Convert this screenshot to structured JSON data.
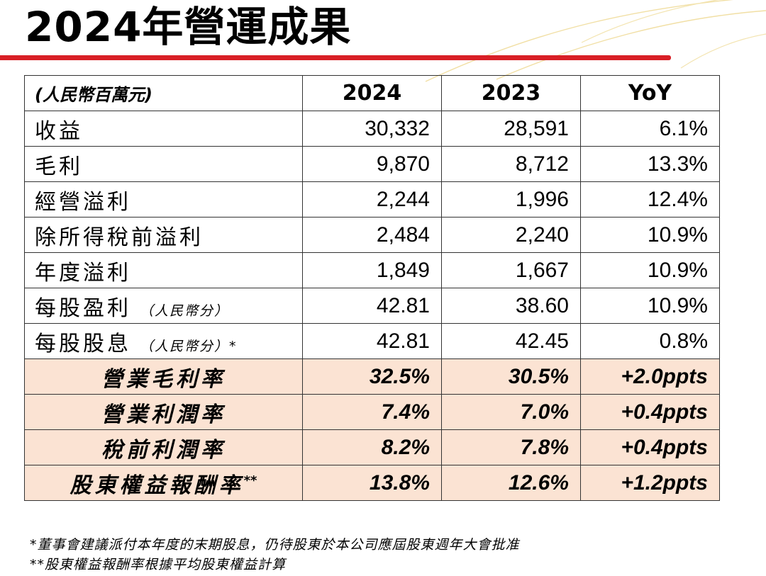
{
  "title": "2024年營運成果",
  "table": {
    "header": {
      "unit": "(人民幣百萬元)",
      "col_2024": "2024",
      "col_2023": "2023",
      "col_yoy": "YoY"
    },
    "rows": [
      {
        "label": "收益",
        "sub": "",
        "v2024": "30,332",
        "v2023": "28,591",
        "yoy": "6.1%"
      },
      {
        "label": "毛利",
        "sub": "",
        "v2024": "9,870",
        "v2023": "8,712",
        "yoy": "13.3%"
      },
      {
        "label": "經營溢利",
        "sub": "",
        "v2024": "2,244",
        "v2023": "1,996",
        "yoy": "12.4%"
      },
      {
        "label": "除所得稅前溢利",
        "sub": "",
        "v2024": "2,484",
        "v2023": "2,240",
        "yoy": "10.9%"
      },
      {
        "label": "年度溢利",
        "sub": "",
        "v2024": "1,849",
        "v2023": "1,667",
        "yoy": "10.9%"
      },
      {
        "label": "每股盈利",
        "sub": "（人民幣分）",
        "v2024": "42.81",
        "v2023": "38.60",
        "yoy": "10.9%"
      },
      {
        "label": "每股股息",
        "sub": "（人民幣分）*",
        "v2024": "42.81",
        "v2023": "42.45",
        "yoy": "0.8%"
      }
    ],
    "ratios": [
      {
        "label": "營業毛利率",
        "sup": "",
        "v2024": "32.5%",
        "v2023": "30.5%",
        "yoy": "+2.0ppts"
      },
      {
        "label": "營業利潤率",
        "sup": "",
        "v2024": "7.4%",
        "v2023": "7.0%",
        "yoy": "+0.4ppts"
      },
      {
        "label": "稅前利潤率",
        "sup": "",
        "v2024": "8.2%",
        "v2023": "7.8%",
        "yoy": "+0.4ppts"
      },
      {
        "label": "股東權益報酬率",
        "sup": "**",
        "v2024": "13.8%",
        "v2023": "12.6%",
        "yoy": "+1.2ppts"
      }
    ]
  },
  "notes": [
    "*董事會建議派付本年度的末期股息，仍待股東於本公司應屆股東週年大會批准",
    "**股東權益報酬率根據平均股東權益計算"
  ]
}
